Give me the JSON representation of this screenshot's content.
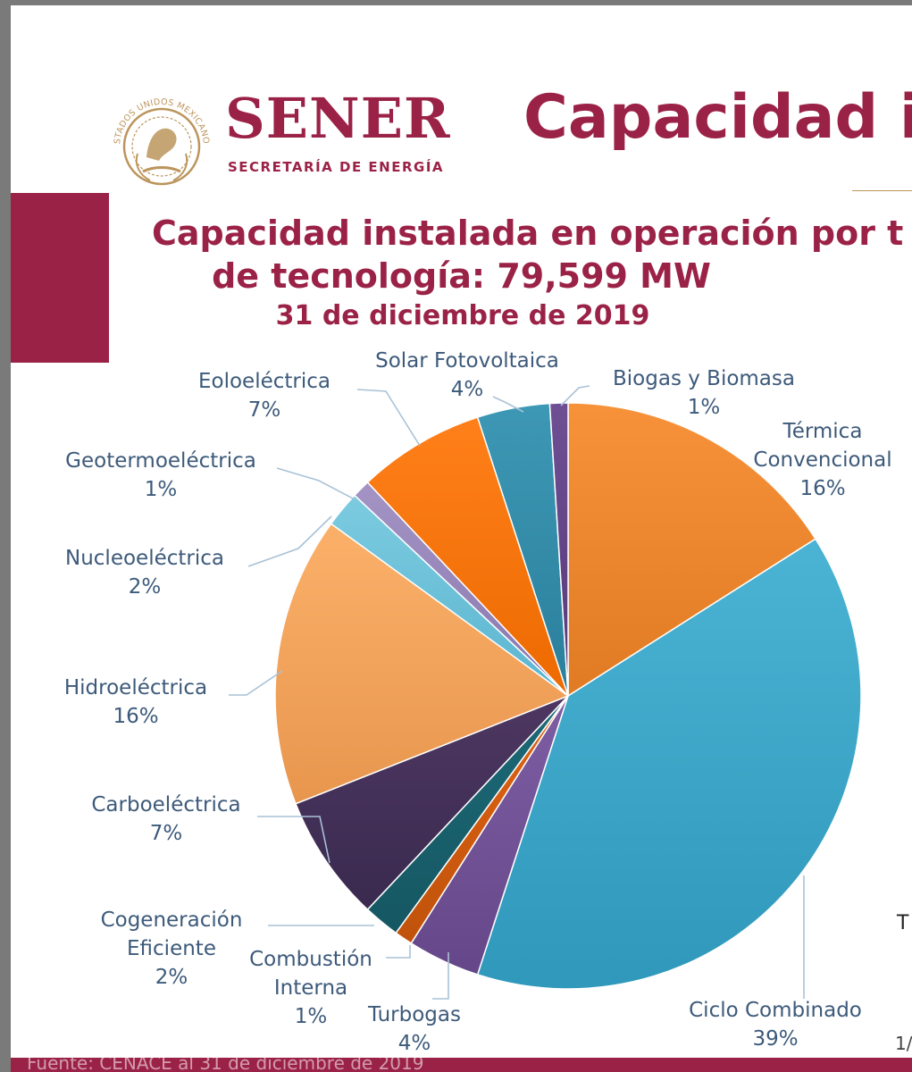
{
  "header": {
    "seal_text": "ESTADOS UNIDOS MEXICANOS",
    "logo_main": "SENER",
    "logo_sub": "SECRETARÍA DE ENERGÍA",
    "page_heading": "Capacidad i"
  },
  "colors": {
    "brand": "#9b2247",
    "gold": "#bc955c",
    "label_text": "#3d5a7a",
    "leader": "#a9c2d6"
  },
  "chart_data": {
    "type": "pie",
    "title": "Capacidad instalada en operación por t",
    "title_line2": "de tecnología: 79,599 MW",
    "subtitle": "31 de diciembre de 2019",
    "start": "12 o'clock, clockwise",
    "slices": [
      {
        "label": "Térmica Convencional",
        "label_lines": [
          "Térmica",
          "Convencional"
        ],
        "percent_label": "16%",
        "value": 16,
        "color": "#f7923a",
        "color_dark": "#e07b23"
      },
      {
        "label": "Ciclo Combinado",
        "label_lines": [
          "Ciclo Combinado"
        ],
        "percent_label": "39%",
        "value": 39,
        "color": "#4bb3d3",
        "color_dark": "#2f98bb"
      },
      {
        "label": "Turbogas",
        "label_lines": [
          "Turbogas"
        ],
        "percent_label": "4%",
        "value": 4,
        "color": "#7e5ea3",
        "color_dark": "#654789"
      },
      {
        "label": "Combustión Interna",
        "label_lines": [
          "Combustión",
          "Interna"
        ],
        "percent_label": "1%",
        "value": 1,
        "color": "#e06414",
        "color_dark": "#c0520b"
      },
      {
        "label": "Cogeneración Eficiente",
        "label_lines": [
          "Cogeneración",
          "Eficiente"
        ],
        "percent_label": "2%",
        "value": 2,
        "color": "#1d6a78",
        "color_dark": "#155762"
      },
      {
        "label": "Carboeléctrica",
        "label_lines": [
          "Carboeléctrica"
        ],
        "percent_label": "7%",
        "value": 7,
        "color": "#4d3762",
        "color_dark": "#3a2a4f"
      },
      {
        "label": "Hidroeléctrica",
        "label_lines": [
          "Hidroeléctrica"
        ],
        "percent_label": "16%",
        "value": 16,
        "color": "#fbb069",
        "color_dark": "#e8964e"
      },
      {
        "label": "Nucleoeléctrica",
        "label_lines": [
          "Nucleoeléctrica"
        ],
        "percent_label": "2%",
        "value": 2,
        "color": "#7ccbe0",
        "color_dark": "#5bb5cf"
      },
      {
        "label": "Geotermoeléctrica",
        "label_lines": [
          "Geotermoeléctrica"
        ],
        "percent_label": "1%",
        "value": 1,
        "color": "#a494c4",
        "color_dark": "#8878b0"
      },
      {
        "label": "Eoloeléctrica",
        "label_lines": [
          "Eoloeléctrica"
        ],
        "percent_label": "7%",
        "value": 7,
        "color": "#ff7f1a",
        "color_dark": "#ec6a00"
      },
      {
        "label": "Solar Fotovoltaica",
        "label_lines": [
          "Solar Fotovoltaica"
        ],
        "percent_label": "4%",
        "value": 4,
        "color": "#3d98b5",
        "color_dark": "#2a7f9b"
      },
      {
        "label": "Biogas y Biomasa",
        "label_lines": [
          "Biogas y Biomasa"
        ],
        "percent_label": "1%",
        "value": 1,
        "color": "#6f4f94",
        "color_dark": "#563a7a"
      }
    ]
  },
  "footer": {
    "source_text": "Fuente: CENACE al 31 de diciembre de 2019"
  },
  "edge_marks": {
    "right_mark": "T",
    "page_mark": "1/"
  }
}
